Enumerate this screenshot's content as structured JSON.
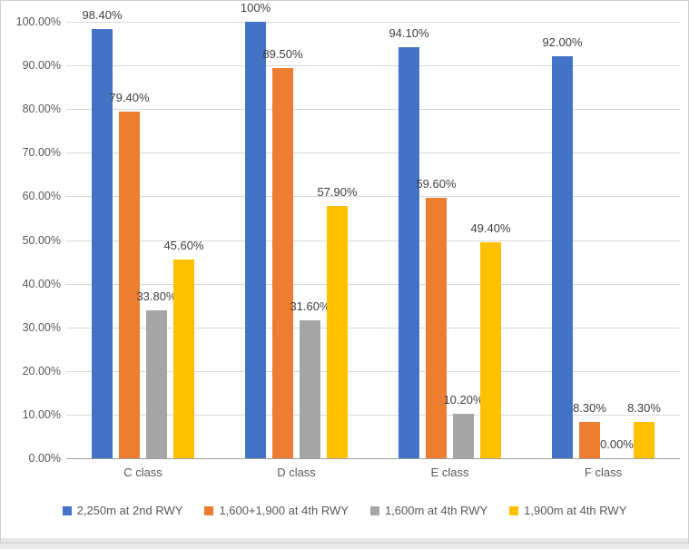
{
  "chart_data": {
    "type": "bar",
    "title": "",
    "xlabel": "",
    "ylabel": "",
    "categories": [
      "C class",
      "D class",
      "E class",
      "F class"
    ],
    "series": [
      {
        "name": "2,250m at 2nd RWY",
        "color": "#4472C4",
        "values": [
          98.4,
          100,
          94.1,
          92.0
        ],
        "labels": [
          "98.40%",
          "100%",
          "94.10%",
          "92.00%"
        ]
      },
      {
        "name": "1,600+1,900 at 4th RWY",
        "color": "#ED7D31",
        "values": [
          79.4,
          89.5,
          59.6,
          8.3
        ],
        "labels": [
          "79.40%",
          "89.50%",
          "59.60%",
          "8.30%"
        ]
      },
      {
        "name": "1,600m at 4th RWY",
        "color": "#A5A5A5",
        "values": [
          33.8,
          31.6,
          10.2,
          0.0
        ],
        "labels": [
          "33.80%",
          "31.60%",
          "10.20%",
          "0.00%"
        ]
      },
      {
        "name": "1,900m at 4th RWY",
        "color": "#FFC000",
        "values": [
          45.6,
          57.9,
          49.4,
          8.3
        ],
        "labels": [
          "45.60%",
          "57.90%",
          "49.40%",
          "8.30%"
        ]
      }
    ],
    "y_axis": {
      "min": 0,
      "max": 100,
      "step": 10,
      "tick_labels": [
        "0.00%",
        "10.00%",
        "20.00%",
        "30.00%",
        "40.00%",
        "50.00%",
        "60.00%",
        "70.00%",
        "80.00%",
        "90.00%",
        "100.00%"
      ]
    },
    "grid": true,
    "legend_position": "bottom",
    "plot_colors": {
      "gridline": "#d9d9d9",
      "axis_line": "#9e9e9e",
      "tick_text": "#595959",
      "data_label_text": "#404040"
    }
  }
}
